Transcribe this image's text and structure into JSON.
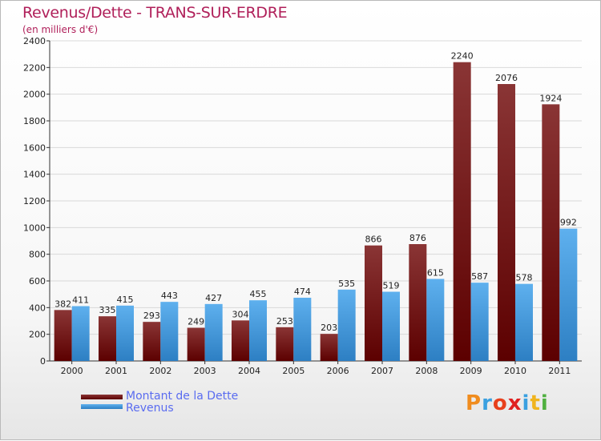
{
  "title": "Revenus/Dette - TRANS-SUR-ERDRE",
  "subtitle": "(en milliers d'€)",
  "legend": [
    {
      "label": "Montant de la Dette"
    },
    {
      "label": "Revenus"
    }
  ],
  "logo": {
    "letters": [
      "P",
      "r",
      "o",
      "x",
      "i",
      "t",
      "i"
    ]
  },
  "colors": {
    "title": "#b0205a",
    "dette_top": "#8a3535",
    "dette_bottom": "#5c0000",
    "revenus_top": "#5eb0ee",
    "revenus_bottom": "#2d7fc3",
    "legend_text": "#5a6cf0"
  },
  "chart_data": {
    "type": "bar",
    "title": "Revenus/Dette - TRANS-SUR-ERDRE",
    "categories": [
      "2000",
      "2001",
      "2002",
      "2003",
      "2004",
      "2005",
      "2006",
      "2007",
      "2008",
      "2009",
      "2010",
      "2011"
    ],
    "series": [
      {
        "name": "Montant de la Dette",
        "values": [
          382,
          335,
          293,
          249,
          304,
          253,
          203,
          866,
          876,
          2240,
          2076,
          1924
        ]
      },
      {
        "name": "Revenus",
        "values": [
          411,
          415,
          443,
          427,
          455,
          474,
          535,
          519,
          615,
          587,
          578,
          992
        ]
      }
    ],
    "ylim": [
      0,
      2400
    ],
    "yticks": [
      0,
      200,
      400,
      600,
      800,
      1000,
      1200,
      1400,
      1600,
      1800,
      2000,
      2200,
      2400
    ],
    "grid": true,
    "legend_position": "bottom-left"
  }
}
